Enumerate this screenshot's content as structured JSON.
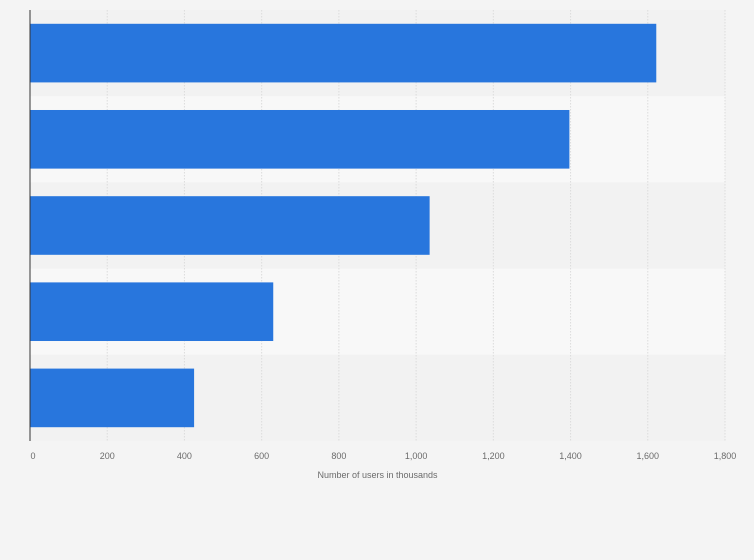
{
  "chart_data": {
    "type": "bar",
    "orientation": "horizontal",
    "categories": [
      "",
      "",
      "",
      "",
      ""
    ],
    "values": [
      1622,
      1397,
      1035,
      630,
      425
    ],
    "xlabel": "Number of users in thousands",
    "ylabel": "",
    "xlim": [
      0,
      1800
    ],
    "xticks": [
      0,
      200,
      400,
      600,
      800,
      1000,
      1200,
      1400,
      1600,
      1800
    ],
    "xtick_labels": [
      "0",
      "200",
      "400",
      "600",
      "800",
      "1,000",
      "1,200",
      "1,400",
      "1,600",
      "1,800"
    ],
    "grid": true,
    "legend": "none",
    "colors": {
      "bar": "#2876dd",
      "band_dark": "#f2f2f2",
      "band_light": "#f8f8f8",
      "grid": "#dcdcdc",
      "axis": "#333333"
    }
  }
}
